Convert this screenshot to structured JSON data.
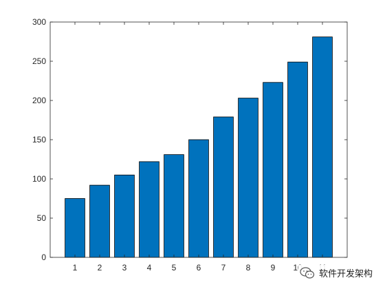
{
  "chart_data": {
    "type": "bar",
    "categories": [
      "1",
      "2",
      "3",
      "4",
      "5",
      "6",
      "7",
      "8",
      "9",
      "10",
      "11"
    ],
    "values": [
      75,
      92,
      105,
      122,
      131,
      150,
      179,
      203,
      223,
      249,
      281
    ],
    "title": "",
    "xlabel": "",
    "ylabel": "",
    "ylim": [
      0,
      300
    ],
    "yticks": [
      0,
      50,
      100,
      150,
      200,
      250,
      300
    ],
    "grid": false,
    "legend": "none",
    "bar_color": "#0072BD",
    "edge_color": "#000000"
  },
  "watermark": {
    "icon": "wechat-icon",
    "text": "软件开发架构"
  }
}
